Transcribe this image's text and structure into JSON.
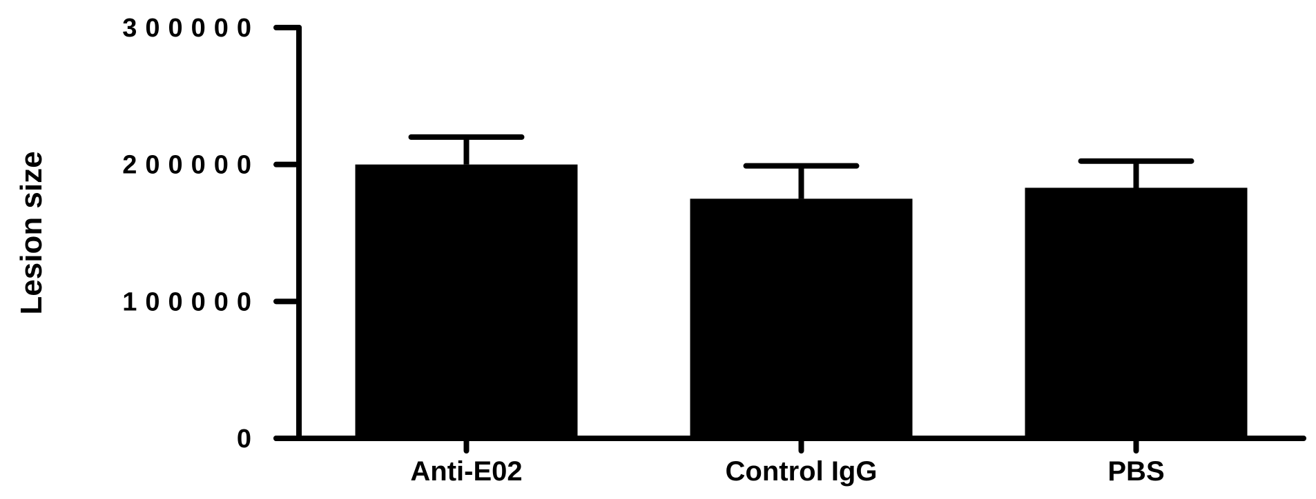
{
  "chart_data": {
    "type": "bar",
    "categories": [
      "Anti-E02",
      "Control IgG",
      "PBS"
    ],
    "values": [
      200000,
      175000,
      183000
    ],
    "error": [
      20000,
      24000,
      19500
    ],
    "xlabel": "",
    "ylabel": "Lesion size",
    "ylim": [
      0,
      300000
    ],
    "yticks": [
      0,
      100000,
      200000,
      300000
    ],
    "ytick_labels": [
      "0",
      "100000",
      "200000",
      "300000"
    ],
    "grid": false,
    "bar_color": "#000000",
    "axis_color": "#000000"
  }
}
